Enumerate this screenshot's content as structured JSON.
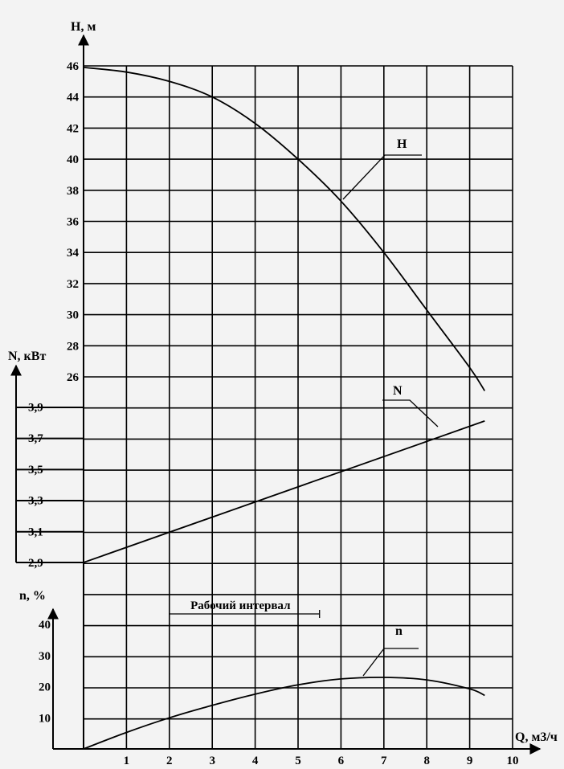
{
  "chart_data": [
    {
      "type": "line",
      "ylabel": "H, м",
      "ylim": [
        25,
        46
      ],
      "yticks": [
        "46",
        "44",
        "42",
        "40",
        "38",
        "36",
        "34",
        "32",
        "30",
        "28",
        "26"
      ],
      "series": [
        {
          "name": "H",
          "x": [
            0,
            1,
            2,
            3,
            4,
            5,
            6,
            7,
            8,
            9,
            9.35
          ],
          "y": [
            45.9,
            45.6,
            45.0,
            44.0,
            42.3,
            40.0,
            37.3,
            34.0,
            30.3,
            26.6,
            25.1
          ]
        }
      ]
    },
    {
      "type": "line",
      "ylabel": "N, кВт",
      "ylim": [
        2.9,
        3.9
      ],
      "yticks": [
        "3,9",
        "3,7",
        "3,5",
        "3,3",
        "3,1",
        "2,9"
      ],
      "series": [
        {
          "name": "N",
          "x": [
            0,
            9.35
          ],
          "y": [
            2.9,
            3.81
          ]
        }
      ]
    },
    {
      "type": "line",
      "ylabel": "n, %",
      "ylim": [
        0,
        40
      ],
      "yticks": [
        "40",
        "30",
        "20",
        "10"
      ],
      "series": [
        {
          "name": "n",
          "x": [
            0,
            1,
            2,
            3,
            4,
            5,
            6,
            7,
            8,
            9,
            9.35
          ],
          "y": [
            0,
            5.3,
            10,
            14,
            17.6,
            20.6,
            22.5,
            23,
            22.2,
            19.3,
            17.2
          ]
        }
      ],
      "annotations": [
        {
          "text": "Рабочий интервал",
          "x_range": [
            2,
            5.5
          ]
        }
      ]
    }
  ],
  "x_axis": {
    "label": "Q, м3/ч",
    "ticks": [
      "1",
      "2",
      "3",
      "4",
      "5",
      "6",
      "7",
      "8",
      "9",
      "10"
    ],
    "xlim": [
      0,
      10
    ]
  }
}
